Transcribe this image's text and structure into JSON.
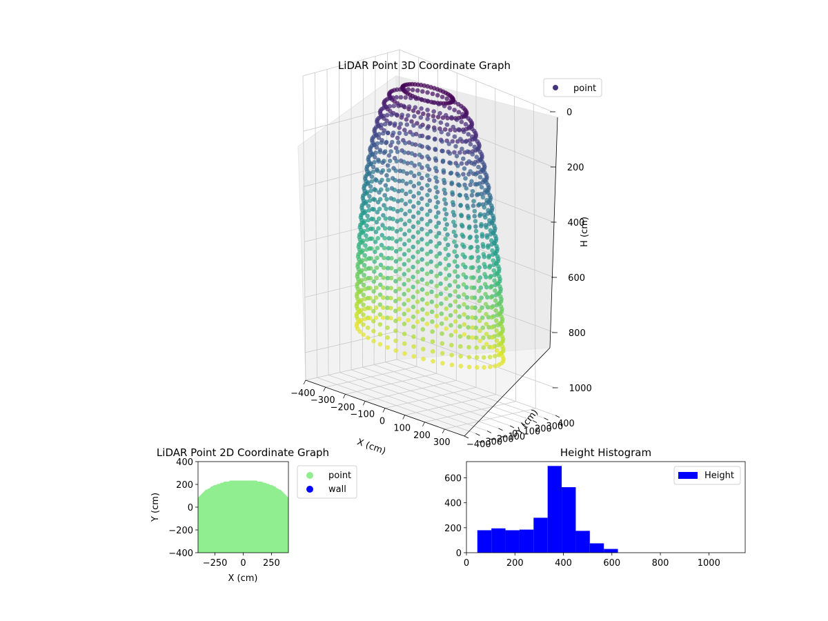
{
  "chart_data": [
    {
      "type": "scatter3d",
      "title": "LiDAR Point 3D Coordinate Graph",
      "xlabel": "X (cm)",
      "ylabel": "Y (cm)",
      "zlabel": "H (cm)",
      "xlim": [
        -400,
        400
      ],
      "ylim": [
        -400,
        400
      ],
      "zlim": [
        0,
        1100
      ],
      "z_inverted": true,
      "x_ticks": [
        "−400",
        "−300",
        "−200",
        "−100",
        "0",
        "100",
        "200",
        "300"
      ],
      "y_ticks": [
        "−400",
        "−300",
        "−200",
        "−100",
        "0",
        "100",
        "200",
        "300",
        "400"
      ],
      "z_ticks": [
        "0",
        "200",
        "400",
        "600",
        "800",
        "1000"
      ],
      "colormap": "viridis",
      "legend": {
        "label": "point",
        "position": "top-right",
        "color": "#46337e"
      },
      "grid": true
    },
    {
      "type": "scatter",
      "title": "LiDAR Point 2D Coordinate Graph",
      "xlabel": "X (cm)",
      "ylabel": "Y (cm)",
      "xlim": [
        -400,
        400
      ],
      "ylim": [
        -400,
        400
      ],
      "x_ticks": [
        "−250",
        "0",
        "250"
      ],
      "y_ticks": [
        "400",
        "200",
        "0",
        "−200",
        "−400"
      ],
      "series": [
        {
          "name": "point",
          "color": "#90ee90"
        },
        {
          "name": "wall",
          "color": "#0000ff"
        }
      ],
      "legend_position": "outside-right"
    },
    {
      "type": "bar",
      "title": "Height Histogram",
      "xlim": [
        0,
        1150
      ],
      "ylim": [
        0,
        730
      ],
      "x_ticks": [
        0,
        200,
        400,
        600,
        800,
        1000
      ],
      "y_ticks": [
        0,
        200,
        400,
        600
      ],
      "bin_edges": [
        45,
        103,
        161,
        219,
        277,
        335,
        393,
        451,
        509,
        567
      ],
      "values": [
        180,
        195,
        180,
        185,
        280,
        695,
        525,
        175,
        75,
        30
      ],
      "series": [
        {
          "name": "Height",
          "color": "#0000ff"
        }
      ],
      "legend_position": "top-right"
    }
  ]
}
